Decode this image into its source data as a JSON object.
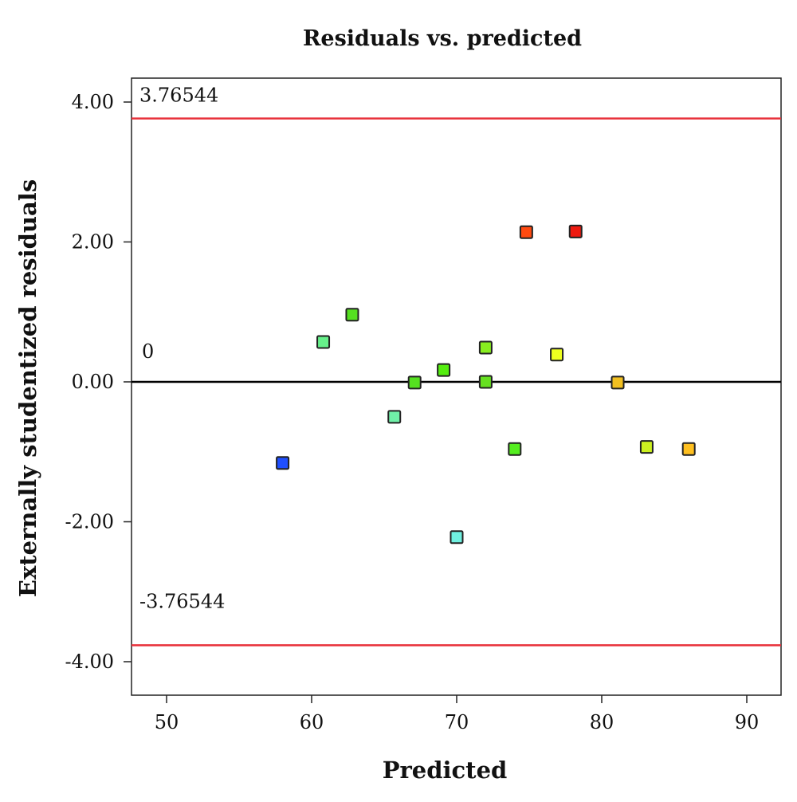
{
  "chart_data": {
    "type": "scatter",
    "title": "Residuals vs. predicted",
    "xlabel": "Predicted",
    "ylabel": "Externally studentized residuals",
    "xlim": [
      47.6,
      92.8
    ],
    "ylim": [
      -4.4,
      4.4
    ],
    "x_ticks": [
      "50",
      "60",
      "70",
      "80",
      "90"
    ],
    "y_ticks": [
      "4.00",
      "2.00",
      "0.00",
      "-2.00",
      "-4.00"
    ],
    "grid": false,
    "marker": "square",
    "reference_lines": [
      {
        "y": 3.76544,
        "label": "3.76544",
        "color": "#e8303a"
      },
      {
        "y": 0,
        "label": "0",
        "color": "#000000"
      },
      {
        "y": -3.76544,
        "label": "-3.76544",
        "color": "#e8303a"
      }
    ],
    "points": [
      {
        "x": 58.0,
        "y": -1.16,
        "color": "#1f4fff"
      },
      {
        "x": 60.8,
        "y": 0.57,
        "color": "#66f08a"
      },
      {
        "x": 62.8,
        "y": 0.96,
        "color": "#55e020"
      },
      {
        "x": 65.7,
        "y": -0.5,
        "color": "#70f0a8"
      },
      {
        "x": 67.1,
        "y": -0.01,
        "color": "#55e020"
      },
      {
        "x": 69.1,
        "y": 0.17,
        "color": "#55ee10"
      },
      {
        "x": 70.0,
        "y": -2.22,
        "color": "#70f0e0"
      },
      {
        "x": 72.0,
        "y": 0.49,
        "color": "#88ee20"
      },
      {
        "x": 72.0,
        "y": 0.0,
        "color": "#66e020"
      },
      {
        "x": 74.0,
        "y": -0.96,
        "color": "#55ee20"
      },
      {
        "x": 74.8,
        "y": 2.14,
        "color": "#ff4a10"
      },
      {
        "x": 76.9,
        "y": 0.39,
        "color": "#eeff20"
      },
      {
        "x": 78.2,
        "y": 2.15,
        "color": "#ee1a10"
      },
      {
        "x": 81.1,
        "y": -0.01,
        "color": "#f2c020"
      },
      {
        "x": 83.1,
        "y": -0.93,
        "color": "#ccf020"
      },
      {
        "x": 86.0,
        "y": -0.96,
        "color": "#ffc020"
      }
    ]
  }
}
